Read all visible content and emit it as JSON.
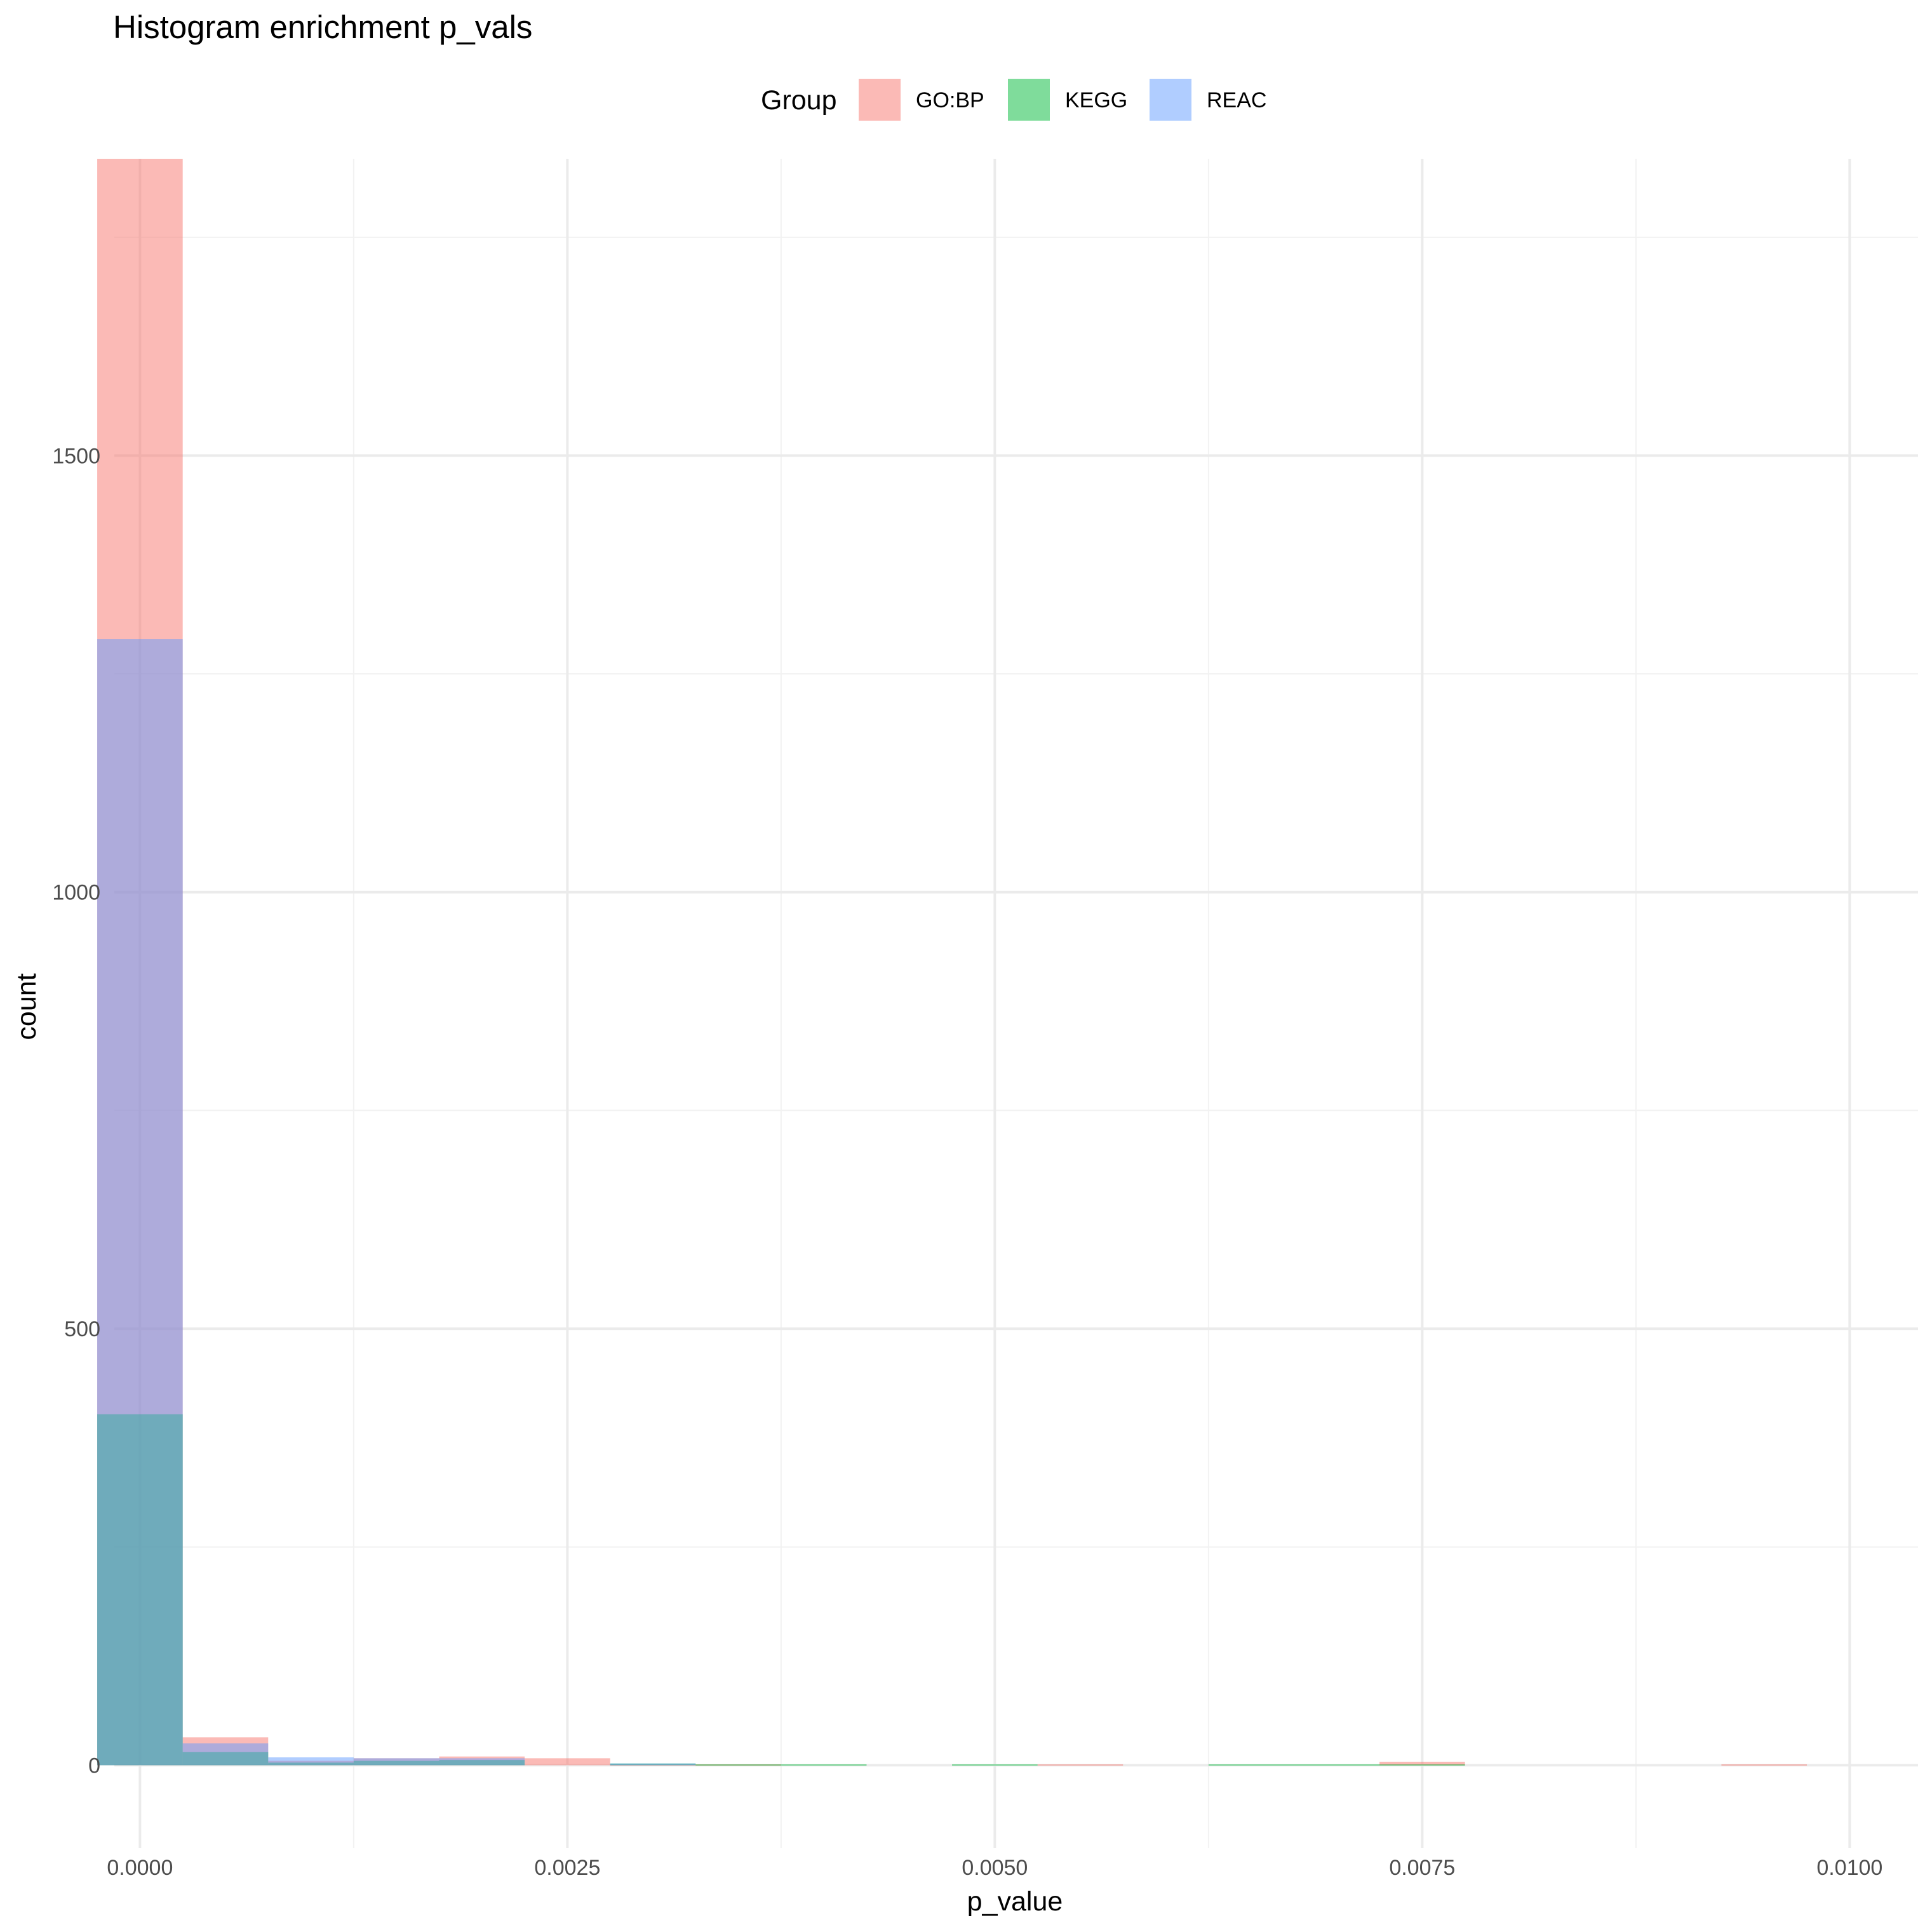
{
  "chart_data": {
    "type": "histogram",
    "title": "Histogram enrichment p_vals",
    "xlabel": "p_value",
    "ylabel": "count",
    "xlim": [
      -0.00015,
      0.0104
    ],
    "ylim": [
      -95,
      1840
    ],
    "x_ticks": [
      0.0,
      0.0025,
      0.005,
      0.0075,
      0.01
    ],
    "x_tick_labels": [
      "0.0000",
      "0.0025",
      "0.0050",
      "0.0075",
      "0.0100"
    ],
    "x_minor_ticks": [
      0.00125,
      0.00375,
      0.00625,
      0.00875
    ],
    "y_ticks": [
      0,
      500,
      1000,
      1500
    ],
    "y_tick_labels": [
      "0",
      "500",
      "1000",
      "1500"
    ],
    "y_minor_ticks": [
      250,
      750,
      1250,
      1750
    ],
    "grid": true,
    "legend": {
      "title": "Group",
      "position": "top"
    },
    "bin_width": 0.0005,
    "bins": [
      0.0,
      0.0005,
      0.001,
      0.0015,
      0.002,
      0.0025,
      0.003,
      0.0035,
      0.004,
      0.0045,
      0.005,
      0.0055,
      0.006,
      0.0065,
      0.007,
      0.0075,
      0.008,
      0.0085,
      0.009,
      0.0095
    ],
    "series": [
      {
        "name": "GO:BP",
        "color": "#F8766D",
        "values": [
          1840,
          32,
          5,
          8,
          10,
          8,
          1,
          1,
          0,
          0,
          0,
          1,
          0,
          0,
          0,
          4,
          0,
          0,
          0,
          1
        ]
      },
      {
        "name": "KEGG",
        "color": "#00BA38",
        "values": [
          402,
          15,
          3,
          5,
          6,
          0,
          2,
          1,
          1,
          0,
          1,
          0,
          0,
          1,
          1,
          1,
          0,
          0,
          0,
          0
        ]
      },
      {
        "name": "REAC",
        "color": "#619CFF",
        "values": [
          1290,
          25,
          9,
          8,
          8,
          0,
          2,
          0,
          0,
          0,
          0,
          0,
          0,
          0,
          0,
          0,
          0,
          0,
          0,
          0
        ]
      }
    ]
  }
}
